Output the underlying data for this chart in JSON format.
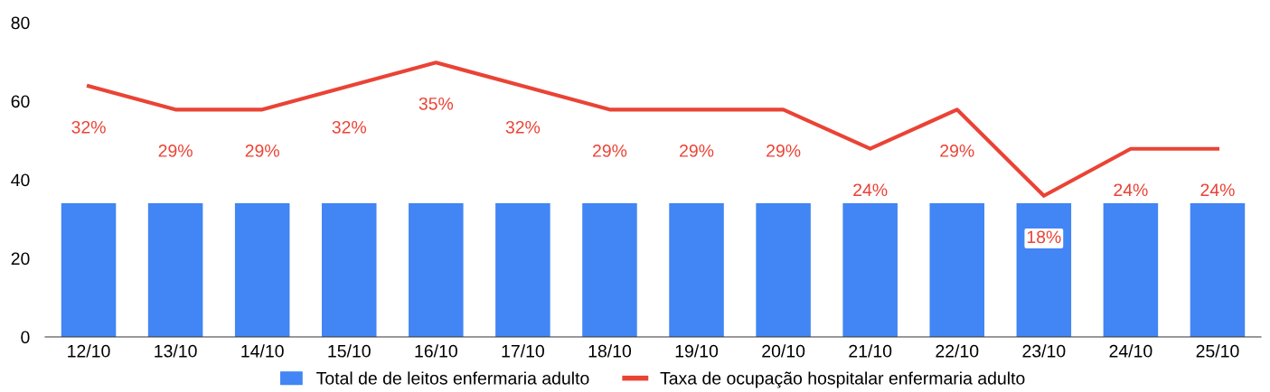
{
  "chart_data": {
    "type": "bar",
    "categories": [
      "12/10",
      "13/10",
      "14/10",
      "15/10",
      "16/10",
      "17/10",
      "18/10",
      "19/10",
      "20/10",
      "21/10",
      "22/10",
      "23/10",
      "24/10",
      "25/10"
    ],
    "series": [
      {
        "name": "Total de de leitos enfermaria adulto",
        "color": "#4285f4",
        "values": [
          34,
          34,
          34,
          34,
          34,
          34,
          34,
          34,
          34,
          34,
          34,
          34,
          34,
          34
        ]
      },
      {
        "name": "Taxa de ocupação hospitalar enfermaria adulto",
        "type": "line",
        "axis": "y2",
        "color": "#ea4335",
        "values": [
          32,
          29,
          29,
          32,
          35,
          32,
          29,
          29,
          29,
          24,
          29,
          18,
          24,
          24
        ],
        "value_labels": [
          "32%",
          "29%",
          "29%",
          "32%",
          "35%",
          "32%",
          "29%",
          "29%",
          "29%",
          "24%",
          "29%",
          "18%",
          "24%",
          "24%"
        ]
      }
    ],
    "ylim": [
      0,
      80
    ],
    "yticks": [
      0,
      20,
      40,
      60,
      80
    ],
    "grid": false,
    "legend": "bottom",
    "marker": "none",
    "line_style": "solid"
  }
}
